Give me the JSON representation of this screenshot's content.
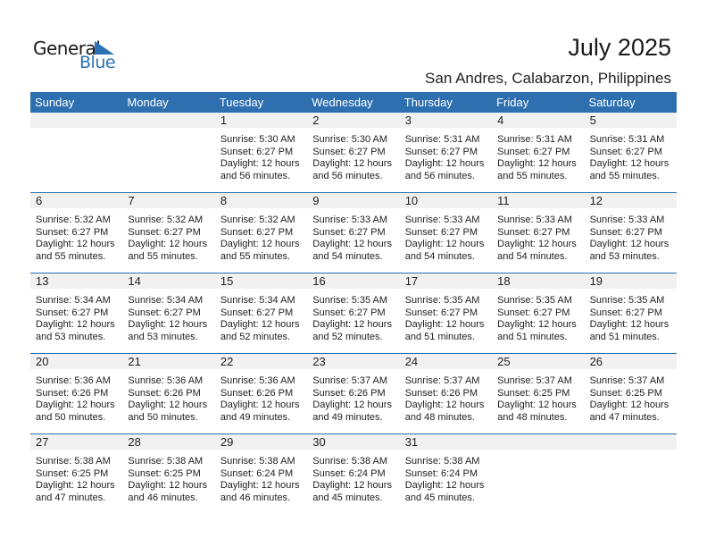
{
  "logo": {
    "word1": "General",
    "word2": "Blue",
    "color": "#2a72b5"
  },
  "header": {
    "title": "July 2025",
    "location": "San Andres, Calabarzon, Philippines"
  },
  "colors": {
    "header_bg": "#2e6fb0",
    "date_strip": "#f1f1f1"
  },
  "weekdays": [
    "Sunday",
    "Monday",
    "Tuesday",
    "Wednesday",
    "Thursday",
    "Friday",
    "Saturday"
  ],
  "weeks": [
    [
      null,
      null,
      {
        "day": "1",
        "sunrise": "Sunrise: 5:30 AM",
        "sunset": "Sunset: 6:27 PM",
        "daylight": "Daylight: 12 hours",
        "minutes": "and 56 minutes."
      },
      {
        "day": "2",
        "sunrise": "Sunrise: 5:30 AM",
        "sunset": "Sunset: 6:27 PM",
        "daylight": "Daylight: 12 hours",
        "minutes": "and 56 minutes."
      },
      {
        "day": "3",
        "sunrise": "Sunrise: 5:31 AM",
        "sunset": "Sunset: 6:27 PM",
        "daylight": "Daylight: 12 hours",
        "minutes": "and 56 minutes."
      },
      {
        "day": "4",
        "sunrise": "Sunrise: 5:31 AM",
        "sunset": "Sunset: 6:27 PM",
        "daylight": "Daylight: 12 hours",
        "minutes": "and 55 minutes."
      },
      {
        "day": "5",
        "sunrise": "Sunrise: 5:31 AM",
        "sunset": "Sunset: 6:27 PM",
        "daylight": "Daylight: 12 hours",
        "minutes": "and 55 minutes."
      }
    ],
    [
      {
        "day": "6",
        "sunrise": "Sunrise: 5:32 AM",
        "sunset": "Sunset: 6:27 PM",
        "daylight": "Daylight: 12 hours",
        "minutes": "and 55 minutes."
      },
      {
        "day": "7",
        "sunrise": "Sunrise: 5:32 AM",
        "sunset": "Sunset: 6:27 PM",
        "daylight": "Daylight: 12 hours",
        "minutes": "and 55 minutes."
      },
      {
        "day": "8",
        "sunrise": "Sunrise: 5:32 AM",
        "sunset": "Sunset: 6:27 PM",
        "daylight": "Daylight: 12 hours",
        "minutes": "and 55 minutes."
      },
      {
        "day": "9",
        "sunrise": "Sunrise: 5:33 AM",
        "sunset": "Sunset: 6:27 PM",
        "daylight": "Daylight: 12 hours",
        "minutes": "and 54 minutes."
      },
      {
        "day": "10",
        "sunrise": "Sunrise: 5:33 AM",
        "sunset": "Sunset: 6:27 PM",
        "daylight": "Daylight: 12 hours",
        "minutes": "and 54 minutes."
      },
      {
        "day": "11",
        "sunrise": "Sunrise: 5:33 AM",
        "sunset": "Sunset: 6:27 PM",
        "daylight": "Daylight: 12 hours",
        "minutes": "and 54 minutes."
      },
      {
        "day": "12",
        "sunrise": "Sunrise: 5:33 AM",
        "sunset": "Sunset: 6:27 PM",
        "daylight": "Daylight: 12 hours",
        "minutes": "and 53 minutes."
      }
    ],
    [
      {
        "day": "13",
        "sunrise": "Sunrise: 5:34 AM",
        "sunset": "Sunset: 6:27 PM",
        "daylight": "Daylight: 12 hours",
        "minutes": "and 53 minutes."
      },
      {
        "day": "14",
        "sunrise": "Sunrise: 5:34 AM",
        "sunset": "Sunset: 6:27 PM",
        "daylight": "Daylight: 12 hours",
        "minutes": "and 53 minutes."
      },
      {
        "day": "15",
        "sunrise": "Sunrise: 5:34 AM",
        "sunset": "Sunset: 6:27 PM",
        "daylight": "Daylight: 12 hours",
        "minutes": "and 52 minutes."
      },
      {
        "day": "16",
        "sunrise": "Sunrise: 5:35 AM",
        "sunset": "Sunset: 6:27 PM",
        "daylight": "Daylight: 12 hours",
        "minutes": "and 52 minutes."
      },
      {
        "day": "17",
        "sunrise": "Sunrise: 5:35 AM",
        "sunset": "Sunset: 6:27 PM",
        "daylight": "Daylight: 12 hours",
        "minutes": "and 51 minutes."
      },
      {
        "day": "18",
        "sunrise": "Sunrise: 5:35 AM",
        "sunset": "Sunset: 6:27 PM",
        "daylight": "Daylight: 12 hours",
        "minutes": "and 51 minutes."
      },
      {
        "day": "19",
        "sunrise": "Sunrise: 5:35 AM",
        "sunset": "Sunset: 6:27 PM",
        "daylight": "Daylight: 12 hours",
        "minutes": "and 51 minutes."
      }
    ],
    [
      {
        "day": "20",
        "sunrise": "Sunrise: 5:36 AM",
        "sunset": "Sunset: 6:26 PM",
        "daylight": "Daylight: 12 hours",
        "minutes": "and 50 minutes."
      },
      {
        "day": "21",
        "sunrise": "Sunrise: 5:36 AM",
        "sunset": "Sunset: 6:26 PM",
        "daylight": "Daylight: 12 hours",
        "minutes": "and 50 minutes."
      },
      {
        "day": "22",
        "sunrise": "Sunrise: 5:36 AM",
        "sunset": "Sunset: 6:26 PM",
        "daylight": "Daylight: 12 hours",
        "minutes": "and 49 minutes."
      },
      {
        "day": "23",
        "sunrise": "Sunrise: 5:37 AM",
        "sunset": "Sunset: 6:26 PM",
        "daylight": "Daylight: 12 hours",
        "minutes": "and 49 minutes."
      },
      {
        "day": "24",
        "sunrise": "Sunrise: 5:37 AM",
        "sunset": "Sunset: 6:26 PM",
        "daylight": "Daylight: 12 hours",
        "minutes": "and 48 minutes."
      },
      {
        "day": "25",
        "sunrise": "Sunrise: 5:37 AM",
        "sunset": "Sunset: 6:25 PM",
        "daylight": "Daylight: 12 hours",
        "minutes": "and 48 minutes."
      },
      {
        "day": "26",
        "sunrise": "Sunrise: 5:37 AM",
        "sunset": "Sunset: 6:25 PM",
        "daylight": "Daylight: 12 hours",
        "minutes": "and 47 minutes."
      }
    ],
    [
      {
        "day": "27",
        "sunrise": "Sunrise: 5:38 AM",
        "sunset": "Sunset: 6:25 PM",
        "daylight": "Daylight: 12 hours",
        "minutes": "and 47 minutes."
      },
      {
        "day": "28",
        "sunrise": "Sunrise: 5:38 AM",
        "sunset": "Sunset: 6:25 PM",
        "daylight": "Daylight: 12 hours",
        "minutes": "and 46 minutes."
      },
      {
        "day": "29",
        "sunrise": "Sunrise: 5:38 AM",
        "sunset": "Sunset: 6:24 PM",
        "daylight": "Daylight: 12 hours",
        "minutes": "and 46 minutes."
      },
      {
        "day": "30",
        "sunrise": "Sunrise: 5:38 AM",
        "sunset": "Sunset: 6:24 PM",
        "daylight": "Daylight: 12 hours",
        "minutes": "and 45 minutes."
      },
      {
        "day": "31",
        "sunrise": "Sunrise: 5:38 AM",
        "sunset": "Sunset: 6:24 PM",
        "daylight": "Daylight: 12 hours",
        "minutes": "and 45 minutes."
      },
      null,
      null
    ]
  ]
}
